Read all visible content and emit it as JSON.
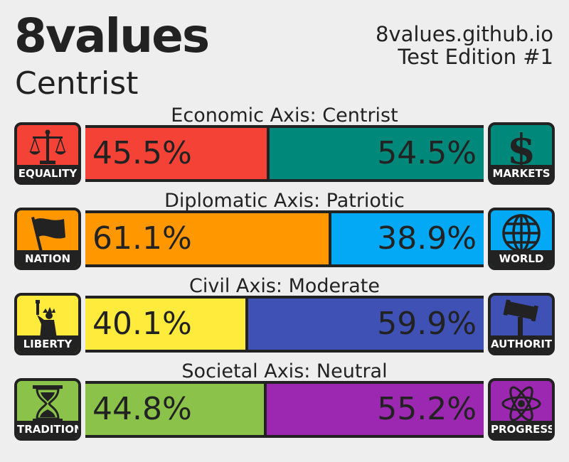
{
  "title": "8values",
  "ideology": "Centrist",
  "site": "8values.github.io",
  "edition": "Test Edition #1",
  "axes": [
    {
      "label": "Economic Axis: Centrist",
      "left": {
        "name": "EQUALITY",
        "value": 45.5,
        "text": "45.5%",
        "color": "#f44336",
        "icon": "scales-icon"
      },
      "right": {
        "name": "MARKETS",
        "value": 54.5,
        "text": "54.5%",
        "color": "#00897b",
        "icon": "dollar-icon"
      }
    },
    {
      "label": "Diplomatic Axis: Patriotic",
      "left": {
        "name": "NATION",
        "value": 61.1,
        "text": "61.1%",
        "color": "#ff9800",
        "icon": "flag-icon"
      },
      "right": {
        "name": "WORLD",
        "value": 38.9,
        "text": "38.9%",
        "color": "#03a9f4",
        "icon": "globe-icon"
      }
    },
    {
      "label": "Civil Axis: Moderate",
      "left": {
        "name": "LIBERTY",
        "value": 40.1,
        "text": "40.1%",
        "color": "#ffeb3b",
        "icon": "statue-of-liberty-icon"
      },
      "right": {
        "name": "AUTHORITY",
        "value": 59.9,
        "text": "59.9%",
        "color": "#3f51b5",
        "icon": "gavel-icon"
      }
    },
    {
      "label": "Societal Axis: Neutral",
      "left": {
        "name": "TRADITION",
        "value": 44.8,
        "text": "44.8%",
        "color": "#8bc34a",
        "icon": "hourglass-icon"
      },
      "right": {
        "name": "PROGRESS",
        "value": 55.2,
        "text": "55.2%",
        "color": "#9c27b0",
        "icon": "atom-icon"
      }
    }
  ]
}
